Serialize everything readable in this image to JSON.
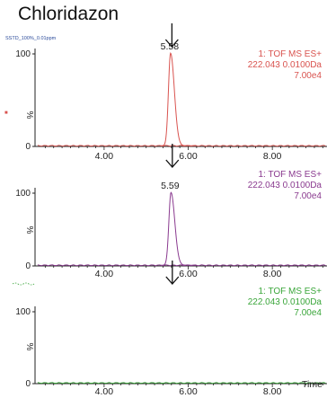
{
  "title": "Chloridazon",
  "sample_label": "SSTD_100%_0.01ppm",
  "x_axis_title": "Time",
  "chart_data": [
    {
      "type": "line",
      "name": "panel-1",
      "xlim": [
        2.4,
        9.3
      ],
      "ylim": [
        0,
        100
      ],
      "x_ticks": [
        "4.00",
        "6.00",
        "8.00"
      ],
      "y_ticks": [
        "0",
        "%",
        "100"
      ],
      "header": [
        "1: TOF MS ES+",
        "222.043 0.0100Da",
        "7.00e4"
      ],
      "peak_label": "5.58",
      "arrow_at": 5.58,
      "color": "#d9534f",
      "peak": {
        "time": 5.58,
        "percent": 100,
        "width": 0.05
      },
      "marker": "■"
    },
    {
      "type": "line",
      "name": "panel-2",
      "xlim": [
        2.4,
        9.3
      ],
      "ylim": [
        0,
        100
      ],
      "x_ticks": [
        "4.00",
        "6.00",
        "8.00"
      ],
      "y_ticks": [
        "0",
        "%",
        "100"
      ],
      "header": [
        "1: TOF MS ES+",
        "222.043 0.0100Da",
        "7.00e4"
      ],
      "peak_label": "5.59",
      "arrow_at": 5.59,
      "color": "#8a3a8f",
      "peak": {
        "time": 5.59,
        "percent": 100,
        "width": 0.05
      },
      "marker": ""
    },
    {
      "type": "line",
      "name": "panel-3",
      "xlim": [
        2.4,
        9.3
      ],
      "ylim": [
        0,
        100
      ],
      "x_ticks": [
        "4.00",
        "6.00",
        "8.00"
      ],
      "y_ticks": [
        "0",
        "%",
        "100"
      ],
      "header": [
        "1: TOF MS ES+",
        "222.043 0.0100Da",
        "7.00e4"
      ],
      "peak_label": "",
      "arrow_at": 5.59,
      "color": "#3aa63a",
      "peak": null,
      "marker": ""
    }
  ],
  "colors": {
    "axis": "#222222",
    "text": "#222222"
  }
}
